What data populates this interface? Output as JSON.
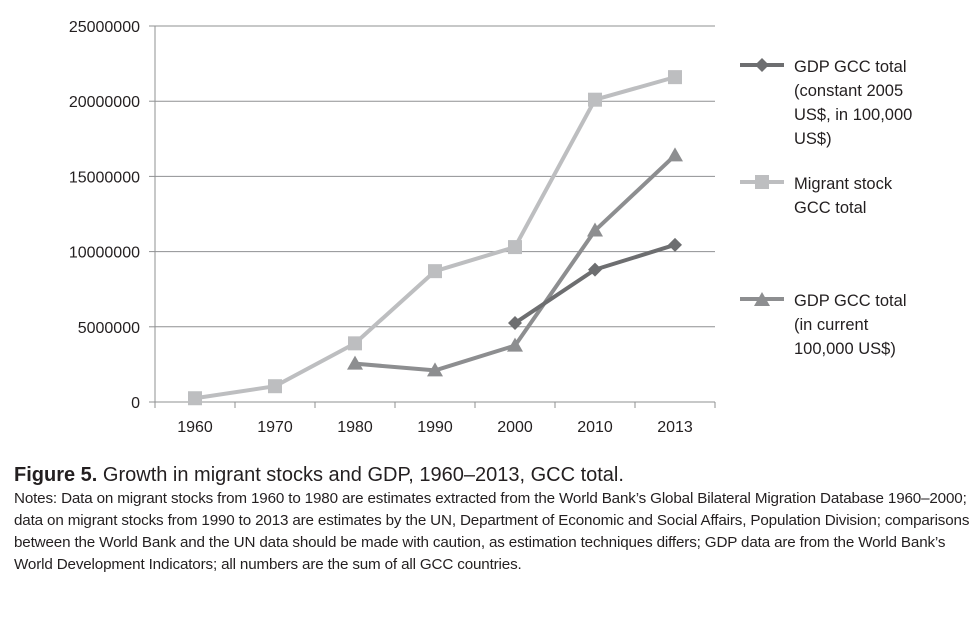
{
  "chart_data": {
    "type": "line",
    "categories": [
      "1960",
      "1970",
      "1980",
      "1990",
      "2000",
      "2010",
      "2013"
    ],
    "y_ticks": [
      "0",
      "5000000",
      "10000000",
      "15000000",
      "20000000",
      "25000000"
    ],
    "ylim": [
      0,
      25000000
    ],
    "grid": true,
    "legend_position": "right",
    "series": [
      {
        "name": "GDP GCC total\n(constant 2005\nUS$, in 100,000\nUS$)",
        "marker": "diamond",
        "color": "#6d6e70",
        "values": [
          null,
          null,
          null,
          null,
          5250000,
          8800000,
          10450000
        ]
      },
      {
        "name": "Migrant stock\nGCC total",
        "marker": "square",
        "color": "#bdbec0",
        "values": [
          250000,
          1050000,
          3900000,
          8700000,
          10300000,
          20100000,
          21600000
        ]
      },
      {
        "name": "GDP GCC total\n(in current\n100,000 US$)",
        "marker": "triangle",
        "color": "#8d8e90",
        "values": [
          null,
          null,
          2550000,
          2100000,
          3750000,
          11400000,
          16400000
        ]
      }
    ]
  },
  "caption": {
    "figure_label": "Figure 5.",
    "title": " Growth in migrant stocks and GDP, 1960–2013, GCC total.",
    "notes": "Notes: Data on migrant stocks from 1960 to 1980 are estimates extracted from the World Bank’s Global Bilateral Migration Database 1960–2000; data on migrant stocks from 1990 to 2013 are estimates by the UN, Department of Economic and Social Affairs, Population Division; comparisons between the World Bank and the UN data should be made with caution, as estimation techniques differs; GDP data are from the World Bank’s World Development Indicators; all numbers are the sum of all GCC countries."
  }
}
